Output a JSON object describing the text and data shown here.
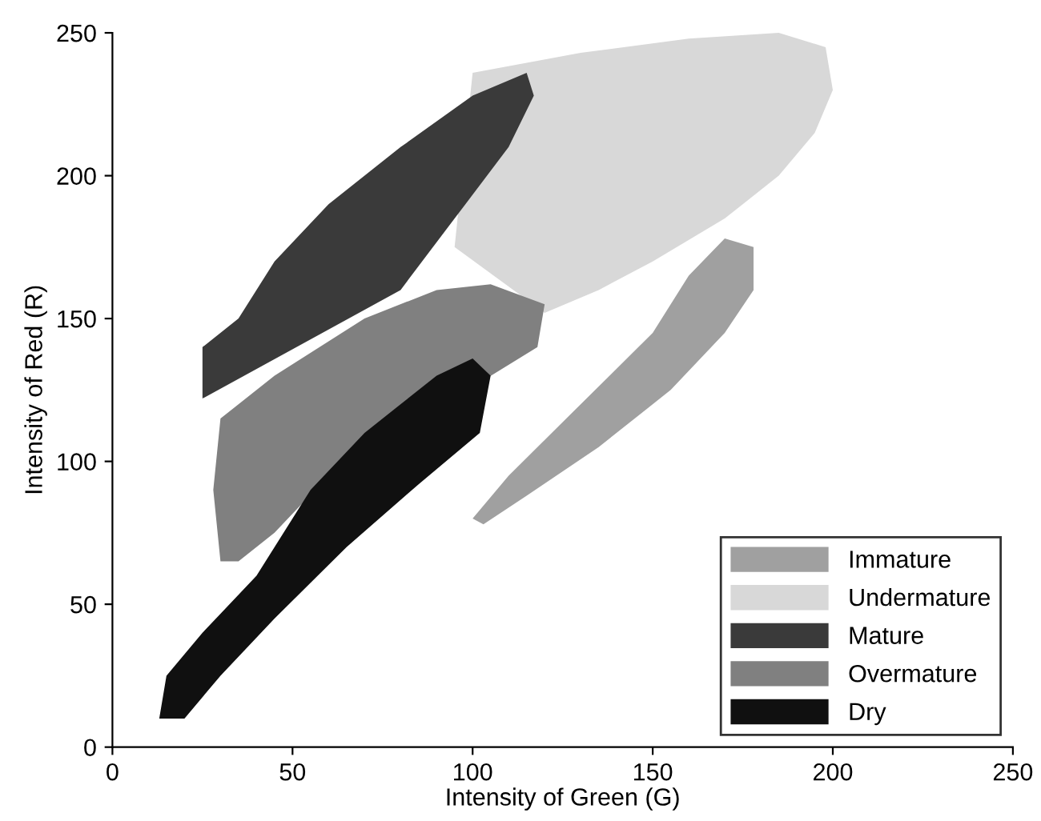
{
  "chart_data": {
    "type": "area",
    "xlabel": "Intensity of Green (G)",
    "ylabel": "Intensity of Red (R)",
    "xlim": [
      0,
      250
    ],
    "ylim": [
      0,
      250
    ],
    "xticks": [
      0,
      50,
      100,
      150,
      200,
      250
    ],
    "yticks": [
      0,
      50,
      100,
      150,
      200,
      250
    ],
    "grid": false,
    "legend": "bottom right",
    "series": [
      {
        "name": "Immature",
        "color": "#a0a0a0",
        "x": [
          100,
          110,
          130,
          150,
          160,
          170,
          178,
          178,
          170,
          155,
          135,
          115,
          103
        ],
        "values": [
          80,
          95,
          120,
          145,
          165,
          178,
          175,
          160,
          145,
          125,
          105,
          88,
          78
        ]
      },
      {
        "name": "Undermature",
        "color": "#d8d8d8",
        "x": [
          100,
          130,
          160,
          185,
          198,
          200,
          195,
          185,
          170,
          150,
          135,
          120,
          95
        ],
        "values": [
          236,
          243,
          248,
          250,
          245,
          230,
          215,
          200,
          185,
          170,
          160,
          152,
          175
        ]
      },
      {
        "name": "Mature",
        "color": "#3a3a3a",
        "x": [
          35,
          45,
          60,
          80,
          100,
          115,
          117,
          110,
          95,
          80,
          25,
          25
        ],
        "values": [
          150,
          170,
          190,
          210,
          228,
          236,
          228,
          210,
          185,
          160,
          122,
          140
        ]
      },
      {
        "name": "Overmature",
        "color": "#808080",
        "x": [
          30,
          28,
          30,
          45,
          70,
          90,
          105,
          120,
          118,
          60,
          45,
          35
        ],
        "values": [
          65,
          90,
          115,
          130,
          150,
          160,
          162,
          155,
          140,
          95,
          75,
          65
        ]
      },
      {
        "name": "Dry",
        "color": "#101010",
        "x": [
          13,
          15,
          25,
          40,
          55,
          70,
          90,
          100,
          105,
          102,
          85,
          65,
          45,
          30,
          20
        ],
        "values": [
          10,
          25,
          40,
          60,
          90,
          110,
          130,
          136,
          130,
          110,
          92,
          70,
          45,
          25,
          10
        ]
      }
    ]
  }
}
